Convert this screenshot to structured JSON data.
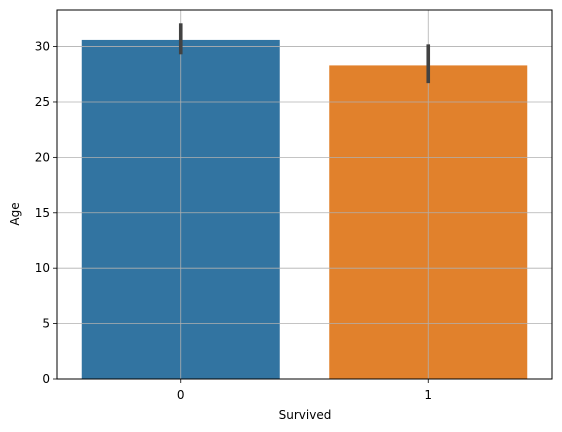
{
  "chart_data": {
    "type": "bar",
    "title": "",
    "xlabel": "Survived",
    "ylabel": "Age",
    "categories": [
      "0",
      "1"
    ],
    "values": [
      30.6,
      28.3
    ],
    "error_bars": [
      {
        "low": 29.3,
        "high": 32.1
      },
      {
        "low": 26.7,
        "high": 30.2
      }
    ],
    "ylim": [
      0,
      33.3
    ],
    "yticks": [
      0,
      5,
      10,
      15,
      20,
      25,
      30
    ],
    "ytick_labels": [
      "0",
      "5",
      "10",
      "15",
      "20",
      "25",
      "30"
    ],
    "grid": true,
    "colors": [
      "#3274a1",
      "#e1812c"
    ],
    "error_bar_color": "#424242",
    "grid_color": "#b0b0b0"
  }
}
